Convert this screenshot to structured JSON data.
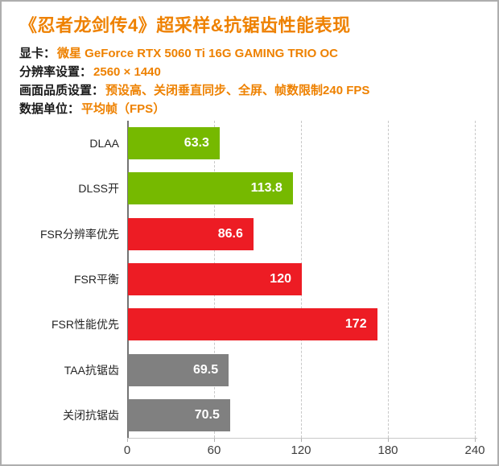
{
  "header": {
    "title": "《忍者龙剑传4》超采样&抗锯齿性能表现",
    "info": [
      {
        "label": "显卡：",
        "value": "微星 GeForce RTX 5060 Ti 16G GAMING TRIO OC"
      },
      {
        "label": "分辨率设置：",
        "value": "2560 × 1440"
      },
      {
        "label": "画面品质设置：",
        "value": "预设高、关闭垂直同步、全屏、帧数限制240 FPS"
      },
      {
        "label": "数据单位：",
        "value": "平均帧（FPS）"
      }
    ]
  },
  "colors": {
    "accent_orange": "#ee8100",
    "bar_green": "#76b900",
    "bar_red": "#ed1c24",
    "bar_gray": "#808080",
    "grid": "#c8c8c8",
    "axis": "#737373"
  },
  "chart_data": {
    "type": "bar",
    "orientation": "horizontal",
    "title": "《忍者龙剑传4》超采样&抗锯齿性能表现",
    "unit": "平均帧（FPS）",
    "categories": [
      "DLAA",
      "DLSS开",
      "FSR分辨率优先",
      "FSR平衡",
      "FSR性能优先",
      "TAA抗锯齿",
      "关闭抗锯齿"
    ],
    "values": [
      63.3,
      113.8,
      86.6,
      120,
      172,
      69.5,
      70.5
    ],
    "bar_colors": [
      "#76b900",
      "#76b900",
      "#ed1c24",
      "#ed1c24",
      "#ed1c24",
      "#808080",
      "#808080"
    ],
    "xlim": [
      0,
      240
    ],
    "xticks": [
      0,
      60,
      120,
      180,
      240
    ],
    "grid": "vertical-dashed",
    "value_labels": "inside-end-white",
    "legend": "none"
  }
}
